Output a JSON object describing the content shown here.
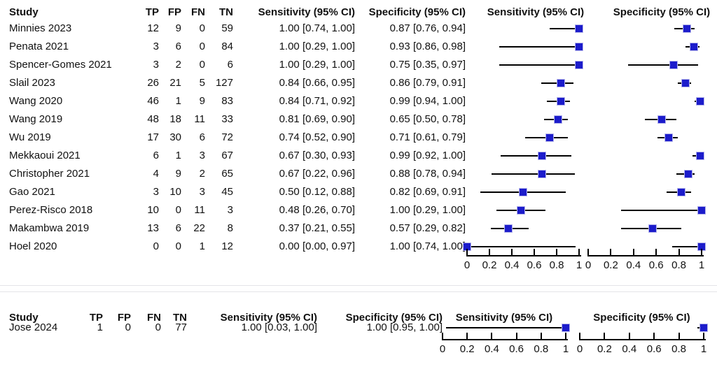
{
  "colors": {
    "marker": "#1c1ccb",
    "marker_border": "#b3b3ea",
    "ci_line": "#000000",
    "axis": "#000000",
    "separator": "#e4e4e8",
    "text": "#111111",
    "background": "#ffffff"
  },
  "chart_data": {
    "type": "forest",
    "subtype": "diagnostic-test-accuracy paired forest plot (sensitivity and specificity per study)",
    "axis": {
      "range": [
        0,
        1
      ],
      "ticks": [
        0,
        0.2,
        0.4,
        0.6,
        0.8,
        1
      ],
      "tick_labels": [
        "0",
        "0.2",
        "0.4",
        "0.6",
        "0.8",
        "1"
      ],
      "grid": false
    },
    "tables": [
      {
        "headers": {
          "study": "Study",
          "tp": "TP",
          "fp": "FP",
          "fn": "FN",
          "tn": "TN",
          "sens": "Sensitivity (95% CI)",
          "spec": "Specificity (95% CI)",
          "sens_plot": "Sensitivity (95% CI)",
          "spec_plot": "Specificity (95% CI)"
        },
        "rows": [
          {
            "study": "Minnies 2023",
            "tp": "12",
            "fp": "9",
            "fn": "0",
            "tn": "59",
            "sens": "1.00 [0.74, 1.00]",
            "spec": "0.87 [0.76, 0.94]",
            "sens_est": 1.0,
            "sens_lo": 0.74,
            "sens_hi": 1.0,
            "spec_est": 0.87,
            "spec_lo": 0.76,
            "spec_hi": 0.94
          },
          {
            "study": "Penata 2021",
            "tp": "3",
            "fp": "6",
            "fn": "0",
            "tn": "84",
            "sens": "1.00 [0.29, 1.00]",
            "spec": "0.93 [0.86, 0.98]",
            "sens_est": 1.0,
            "sens_lo": 0.29,
            "sens_hi": 1.0,
            "spec_est": 0.93,
            "spec_lo": 0.86,
            "spec_hi": 0.98
          },
          {
            "study": "Spencer-Gomes 2021",
            "tp": "3",
            "fp": "2",
            "fn": "0",
            "tn": "6",
            "sens": "1.00 [0.29, 1.00]",
            "spec": "0.75 [0.35, 0.97]",
            "sens_est": 1.0,
            "sens_lo": 0.29,
            "sens_hi": 1.0,
            "spec_est": 0.75,
            "spec_lo": 0.35,
            "spec_hi": 0.97
          },
          {
            "study": "Slail 2023",
            "tp": "26",
            "fp": "21",
            "fn": "5",
            "tn": "127",
            "sens": "0.84 [0.66, 0.95]",
            "spec": "0.86 [0.79, 0.91]",
            "sens_est": 0.84,
            "sens_lo": 0.66,
            "sens_hi": 0.95,
            "spec_est": 0.86,
            "spec_lo": 0.79,
            "spec_hi": 0.91
          },
          {
            "study": "Wang 2020",
            "tp": "46",
            "fp": "1",
            "fn": "9",
            "tn": "83",
            "sens": "0.84 [0.71, 0.92]",
            "spec": "0.99 [0.94, 1.00]",
            "sens_est": 0.84,
            "sens_lo": 0.71,
            "sens_hi": 0.92,
            "spec_est": 0.99,
            "spec_lo": 0.94,
            "spec_hi": 1.0
          },
          {
            "study": "Wang 2019",
            "tp": "48",
            "fp": "18",
            "fn": "11",
            "tn": "33",
            "sens": "0.81 [0.69, 0.90]",
            "spec": "0.65 [0.50, 0.78]",
            "sens_est": 0.81,
            "sens_lo": 0.69,
            "sens_hi": 0.9,
            "spec_est": 0.65,
            "spec_lo": 0.5,
            "spec_hi": 0.78
          },
          {
            "study": "Wu 2019",
            "tp": "17",
            "fp": "30",
            "fn": "6",
            "tn": "72",
            "sens": "0.74 [0.52, 0.90]",
            "spec": "0.71 [0.61, 0.79]",
            "sens_est": 0.74,
            "sens_lo": 0.52,
            "sens_hi": 0.9,
            "spec_est": 0.71,
            "spec_lo": 0.61,
            "spec_hi": 0.79
          },
          {
            "study": "Mekkaoui 2021",
            "tp": "6",
            "fp": "1",
            "fn": "3",
            "tn": "67",
            "sens": "0.67 [0.30, 0.93]",
            "spec": "0.99 [0.92, 1.00]",
            "sens_est": 0.67,
            "sens_lo": 0.3,
            "sens_hi": 0.93,
            "spec_est": 0.99,
            "spec_lo": 0.92,
            "spec_hi": 1.0
          },
          {
            "study": "Christopher 2021",
            "tp": "4",
            "fp": "9",
            "fn": "2",
            "tn": "65",
            "sens": "0.67 [0.22, 0.96]",
            "spec": "0.88 [0.78, 0.94]",
            "sens_est": 0.67,
            "sens_lo": 0.22,
            "sens_hi": 0.96,
            "spec_est": 0.88,
            "spec_lo": 0.78,
            "spec_hi": 0.94
          },
          {
            "study": "Gao 2021",
            "tp": "3",
            "fp": "10",
            "fn": "3",
            "tn": "45",
            "sens": "0.50 [0.12, 0.88]",
            "spec": "0.82 [0.69, 0.91]",
            "sens_est": 0.5,
            "sens_lo": 0.12,
            "sens_hi": 0.88,
            "spec_est": 0.82,
            "spec_lo": 0.69,
            "spec_hi": 0.91
          },
          {
            "study": "Perez-Risco 2018",
            "tp": "10",
            "fp": "0",
            "fn": "11",
            "tn": "3",
            "sens": "0.48 [0.26, 0.70]",
            "spec": "1.00 [0.29, 1.00]",
            "sens_est": 0.48,
            "sens_lo": 0.26,
            "sens_hi": 0.7,
            "spec_est": 1.0,
            "spec_lo": 0.29,
            "spec_hi": 1.0
          },
          {
            "study": "Makambwa 2019",
            "tp": "13",
            "fp": "6",
            "fn": "22",
            "tn": "8",
            "sens": "0.37 [0.21, 0.55]",
            "spec": "0.57 [0.29, 0.82]",
            "sens_est": 0.37,
            "sens_lo": 0.21,
            "sens_hi": 0.55,
            "spec_est": 0.57,
            "spec_lo": 0.29,
            "spec_hi": 0.82
          },
          {
            "study": "Hoel 2020",
            "tp": "0",
            "fp": "0",
            "fn": "1",
            "tn": "12",
            "sens": "0.00 [0.00, 0.97]",
            "spec": "1.00 [0.74, 1.00]",
            "sens_est": 0.0,
            "sens_lo": 0.0,
            "sens_hi": 0.97,
            "spec_est": 1.0,
            "spec_lo": 0.74,
            "spec_hi": 1.0
          }
        ]
      },
      {
        "headers": {
          "study": "Study",
          "tp": "TP",
          "fp": "FP",
          "fn": "FN",
          "tn": "TN",
          "sens": "Sensitivity (95% CI)",
          "spec": "Specificity (95% CI)",
          "sens_plot": "Sensitivity (95% CI)",
          "spec_plot": "Specificity (95% CI)"
        },
        "rows": [
          {
            "study": "Jose 2024",
            "tp": "1",
            "fp": "0",
            "fn": "0",
            "tn": "77",
            "sens": "1.00 [0.03, 1.00]",
            "spec": "1.00 [0.95, 1.00]",
            "sens_est": 1.0,
            "sens_lo": 0.03,
            "sens_hi": 1.0,
            "spec_est": 1.0,
            "spec_lo": 0.95,
            "spec_hi": 1.0
          }
        ]
      }
    ]
  }
}
